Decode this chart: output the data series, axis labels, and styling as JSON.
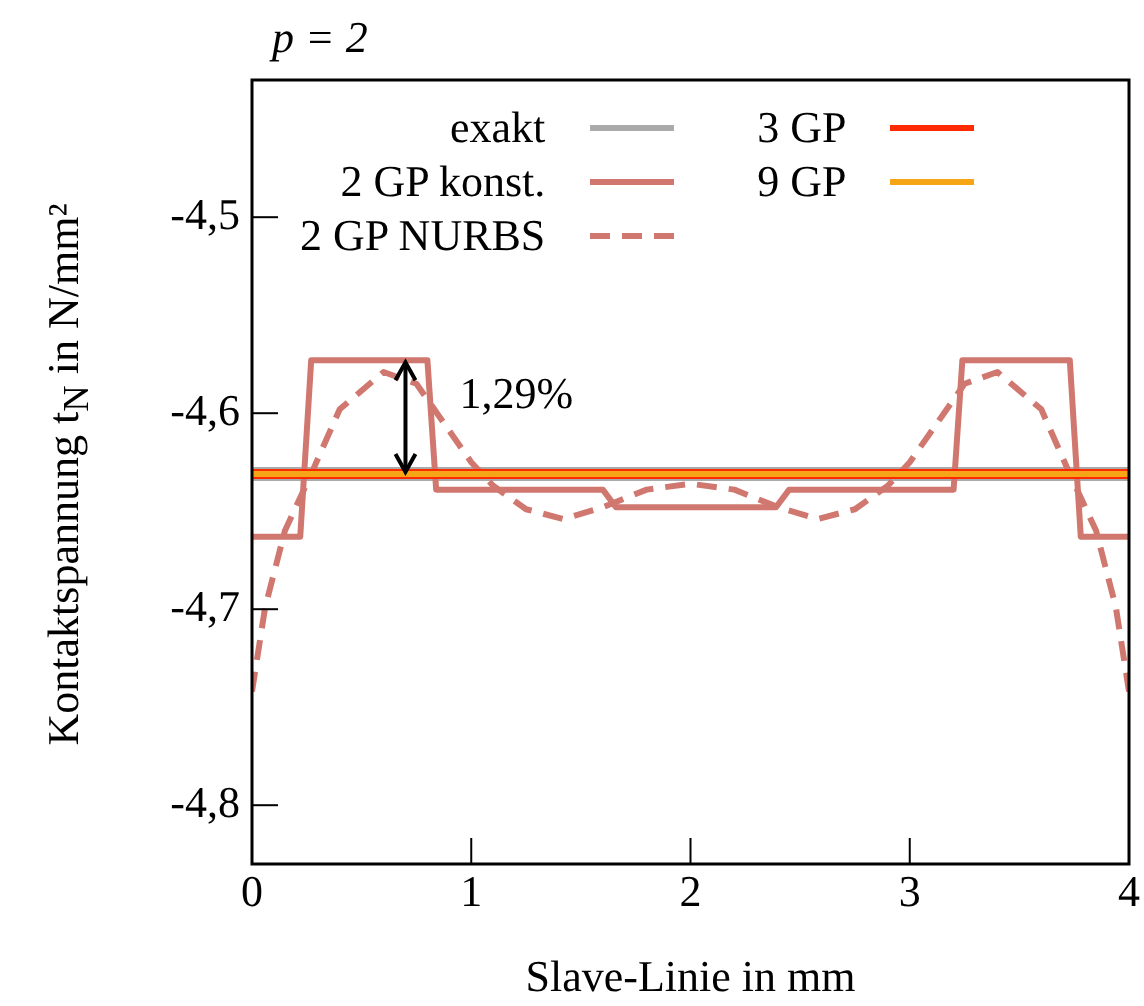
{
  "chart_data": {
    "type": "line",
    "title": "p = 2",
    "xlabel": "Slave-Linie in mm",
    "ylabel": "Kontaktspannung t$_{N}$ in N/mm²",
    "xlim": [
      0,
      4
    ],
    "ylim": [
      -4.83,
      -4.43
    ],
    "xticks": [
      0,
      1,
      2,
      3,
      4
    ],
    "yticks": [
      {
        "value": -4.5,
        "label": "-4,5"
      },
      {
        "value": -4.6,
        "label": "-4,6"
      },
      {
        "value": -4.7,
        "label": "-4,7"
      },
      {
        "value": -4.8,
        "label": "-4,8"
      }
    ],
    "grid": false,
    "legend": "top",
    "marker": "none",
    "annotations": [
      {
        "text": "1,29%",
        "x": 0.7,
        "y": -4.573
      }
    ],
    "series": [
      {
        "name": "exakt",
        "color": "#aaaaaa",
        "line_style": "solid",
        "x": [
          0,
          4
        ],
        "values": [
          -4.631,
          -4.631
        ]
      },
      {
        "name": "2 GP konst.",
        "color": "#d0786f",
        "line_style": "solid",
        "x": [
          0,
          0.22,
          0.27,
          0.8,
          0.84,
          1.6,
          1.66,
          2.39,
          2.45,
          3.2,
          3.24,
          3.73,
          3.78,
          4
        ],
        "values": [
          -4.663,
          -4.663,
          -4.573,
          -4.573,
          -4.639,
          -4.639,
          -4.648,
          -4.648,
          -4.639,
          -4.639,
          -4.573,
          -4.573,
          -4.663,
          -4.663
        ]
      },
      {
        "name": "2 GP NURBS",
        "color": "#d0786f",
        "line_style": "dashed",
        "x": [
          0,
          0.06,
          0.15,
          0.27,
          0.4,
          0.6,
          0.75,
          0.85,
          1.0,
          1.1,
          1.25,
          1.42,
          1.6,
          1.8,
          2.0,
          2.2,
          2.4,
          2.58,
          2.75,
          2.9,
          3.0,
          3.15,
          3.25,
          3.4,
          3.6,
          3.73,
          3.85,
          3.94,
          4
        ],
        "values": [
          -4.742,
          -4.699,
          -4.66,
          -4.631,
          -4.598,
          -4.579,
          -4.585,
          -4.601,
          -4.625,
          -4.637,
          -4.649,
          -4.654,
          -4.648,
          -4.639,
          -4.636,
          -4.639,
          -4.648,
          -4.654,
          -4.649,
          -4.637,
          -4.625,
          -4.601,
          -4.585,
          -4.579,
          -4.598,
          -4.631,
          -4.66,
          -4.699,
          -4.742
        ]
      },
      {
        "name": "3 GP",
        "color": "#ff2a00",
        "line_style": "solid",
        "x": [
          0,
          4
        ],
        "values": [
          -4.631,
          -4.631
        ]
      },
      {
        "name": "9 GP",
        "color": "#f5a516",
        "line_style": "solid",
        "x": [
          0,
          4
        ],
        "values": [
          -4.631,
          -4.631
        ]
      }
    ]
  }
}
